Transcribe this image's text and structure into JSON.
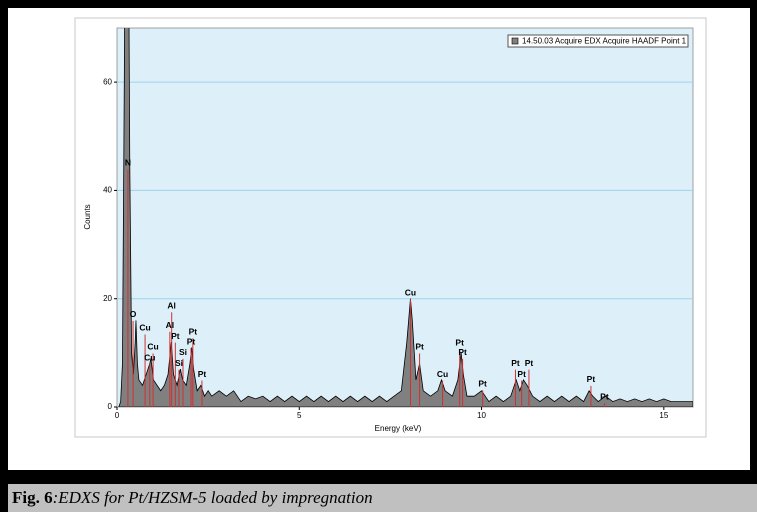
{
  "chart_data": {
    "type": "area",
    "xlabel": "Energy (keV)",
    "ylabel": "Counts",
    "xlim": [
      0,
      15.8
    ],
    "ylim": [
      0,
      70
    ],
    "xticks": [
      0,
      5,
      10,
      15
    ],
    "yticks": [
      0,
      20,
      40,
      60
    ],
    "grid": true,
    "legend": "top-right",
    "series": [
      {
        "name": "14.50.03 Acquire EDX Acquire HAADF Point 1",
        "color": "#808080",
        "x": [
          0.05,
          0.1,
          0.15,
          0.2,
          0.25,
          0.3,
          0.35,
          0.4,
          0.45,
          0.5,
          0.52,
          0.56,
          0.6,
          0.7,
          0.8,
          0.9,
          0.93,
          1.0,
          1.1,
          1.2,
          1.3,
          1.4,
          1.49,
          1.55,
          1.65,
          1.74,
          1.8,
          1.9,
          2.0,
          2.05,
          2.1,
          2.2,
          2.3,
          2.4,
          2.5,
          2.6,
          2.8,
          3.0,
          3.2,
          3.4,
          3.6,
          3.8,
          4.0,
          4.2,
          4.4,
          4.6,
          4.8,
          5.0,
          5.2,
          5.4,
          5.6,
          5.8,
          6.0,
          6.2,
          6.4,
          6.6,
          6.8,
          7.0,
          7.2,
          7.4,
          7.6,
          7.8,
          7.95,
          8.05,
          8.1,
          8.2,
          8.3,
          8.4,
          8.6,
          8.8,
          8.9,
          9.0,
          9.2,
          9.35,
          9.44,
          9.5,
          9.6,
          9.8,
          10.0,
          10.2,
          10.4,
          10.6,
          10.8,
          10.95,
          11.05,
          11.15,
          11.25,
          11.4,
          11.6,
          11.8,
          12.0,
          12.2,
          12.4,
          12.6,
          12.8,
          12.95,
          13.05,
          13.2,
          13.4,
          13.6,
          13.8,
          14.0,
          14.2,
          14.4,
          14.6,
          14.8,
          15.0,
          15.2,
          15.4,
          15.6,
          15.8
        ],
        "values": [
          0,
          1,
          8,
          60,
          120,
          110,
          45,
          10,
          6,
          12,
          16,
          8,
          5,
          4,
          6,
          8,
          9,
          5,
          4,
          3,
          4,
          6,
          12,
          6,
          4,
          7,
          5,
          4,
          8,
          11,
          7,
          3,
          4,
          2,
          3,
          2,
          3,
          2,
          3,
          1,
          2,
          1.5,
          2,
          1,
          2,
          1,
          2,
          1,
          2,
          1,
          2,
          1,
          2,
          1,
          2,
          1,
          2,
          1,
          2,
          1,
          2,
          3,
          12,
          20,
          16,
          5,
          8,
          3,
          2,
          3,
          5,
          3,
          2,
          5,
          10,
          6,
          2,
          2,
          3,
          1,
          2,
          1,
          2,
          5,
          3,
          5,
          4,
          2,
          1,
          2,
          1,
          2,
          1,
          2,
          1,
          3,
          2,
          1,
          2,
          1,
          1.5,
          1,
          1.5,
          1,
          1.5,
          1,
          1.5,
          1,
          1,
          1,
          1
        ]
      }
    ],
    "annotations": [
      {
        "text": "N",
        "x": 0.3,
        "y": 45
      },
      {
        "text": "O",
        "x": 0.44,
        "y": 17
      },
      {
        "text": "Cu",
        "x": 0.77,
        "y": 14.5
      },
      {
        "text": "Cu",
        "x": 0.99,
        "y": 11
      },
      {
        "text": "Cu",
        "x": 0.9,
        "y": 9
      },
      {
        "text": "Al",
        "x": 1.5,
        "y": 18.6
      },
      {
        "text": "Al",
        "x": 1.45,
        "y": 15
      },
      {
        "text": "Pt",
        "x": 1.6,
        "y": 13
      },
      {
        "text": "Pt",
        "x": 2.08,
        "y": 13.8
      },
      {
        "text": "Pt",
        "x": 2.03,
        "y": 12
      },
      {
        "text": "Si",
        "x": 1.81,
        "y": 10
      },
      {
        "text": "Si",
        "x": 1.7,
        "y": 8
      },
      {
        "text": "Pt",
        "x": 2.33,
        "y": 6
      },
      {
        "text": "Cu",
        "x": 8.05,
        "y": 21
      },
      {
        "text": "Pt",
        "x": 8.3,
        "y": 11
      },
      {
        "text": "Cu",
        "x": 8.93,
        "y": 6
      },
      {
        "text": "Pt",
        "x": 9.4,
        "y": 11.8
      },
      {
        "text": "Pt",
        "x": 9.48,
        "y": 10
      },
      {
        "text": "Pt",
        "x": 10.03,
        "y": 4.2
      },
      {
        "text": "Pt",
        "x": 10.93,
        "y": 8
      },
      {
        "text": "Pt",
        "x": 11.3,
        "y": 8
      },
      {
        "text": "Pt",
        "x": 11.1,
        "y": 6
      },
      {
        "text": "Pt",
        "x": 13.0,
        "y": 5
      },
      {
        "text": "Pt",
        "x": 13.37,
        "y": 1.8
      }
    ]
  },
  "caption": {
    "label": "Fig. 6",
    "text": ":EDXS for Pt/HZSM-5 loaded by impregnation"
  }
}
